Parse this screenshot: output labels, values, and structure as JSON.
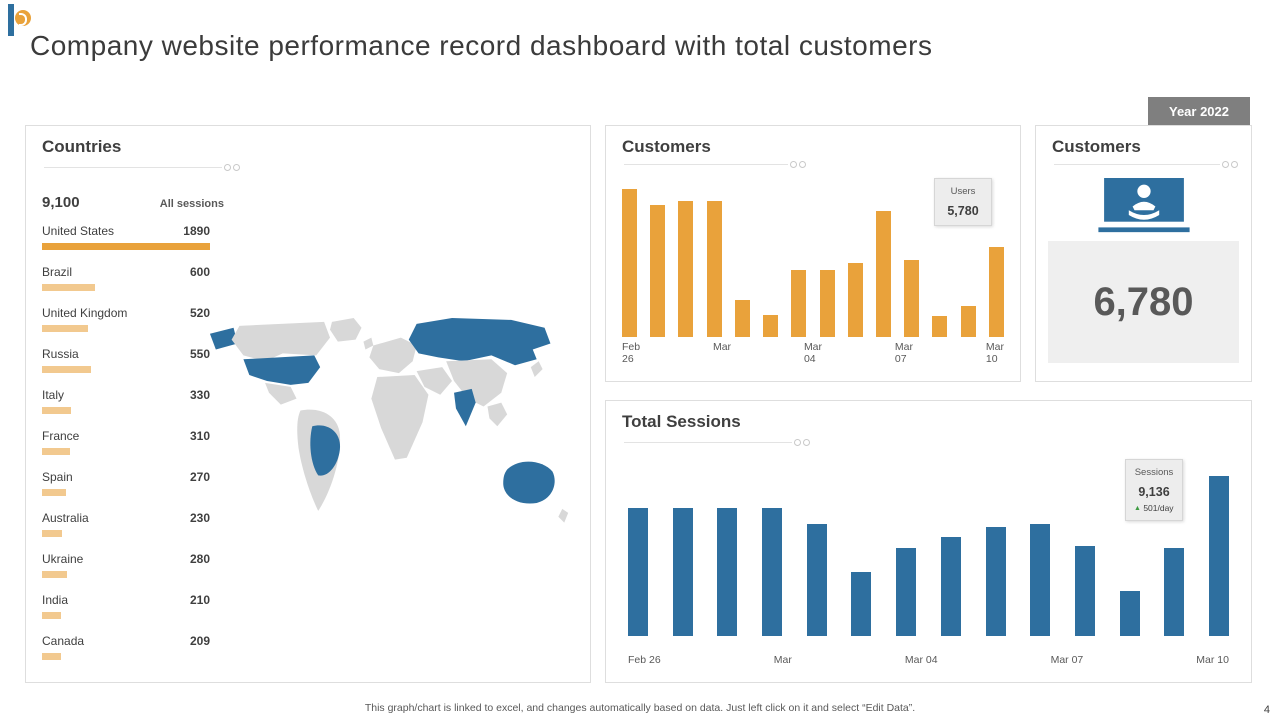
{
  "page": {
    "title": "Company website performance record dashboard with total customers",
    "year_badge": "Year 2022",
    "footer_note": "This graph/chart is linked to excel, and changes automatically based on data. Just left click on it and select “Edit Data”.",
    "page_number": "4"
  },
  "colors": {
    "accent_blue": "#2E6F9F",
    "accent_orange": "#E9A23B",
    "accent_orange_light": "#F2C98F",
    "badge_gray": "#7F7F7F",
    "map_gray": "#D8D8D8",
    "delta_green": "#3E9B42"
  },
  "customers_kpi": {
    "title": "Customers",
    "value": "6,780"
  },
  "chart_data": [
    {
      "id": "countries-all-sessions",
      "type": "bar",
      "orientation": "horizontal",
      "title": "Countries",
      "subtitle_value": "9,100",
      "subtitle_label": "All sessions",
      "categories": [
        "United States",
        "Brazil",
        "United Kingdom",
        "Russia",
        "Italy",
        "France",
        "Spain",
        "Australia",
        "Ukraine",
        "India",
        "Canada"
      ],
      "values": [
        1890,
        600,
        520,
        550,
        330,
        310,
        270,
        230,
        280,
        210,
        209
      ],
      "value_labels": [
        "1890",
        "600",
        "520",
        "550",
        "330",
        "310",
        "270",
        "230",
        "280",
        "210",
        "209"
      ],
      "max": 1890,
      "highlight_index": 0,
      "map_highlighted_countries": [
        "United States",
        "Brazil",
        "Russia",
        "India",
        "Australia"
      ]
    },
    {
      "id": "customers-by-day",
      "type": "bar",
      "title": "Customers",
      "ticks": [
        "Feb\n26",
        "Mar",
        "Mar\n04",
        "Mar\n07",
        "Mar\n10"
      ],
      "values": [
        100,
        89,
        92,
        92,
        25,
        15,
        45,
        45,
        50,
        85,
        52,
        14,
        21,
        61
      ],
      "y_unit": "relative height, % of max (no value axis shown)",
      "legend_position": "none",
      "tooltip": {
        "label": "Users",
        "value": "5,780"
      }
    },
    {
      "id": "total-sessions-by-day",
      "type": "bar",
      "title": "Total Sessions",
      "ticks": [
        "Feb 26",
        "Mar",
        "Mar 04",
        "Mar 07",
        "Mar 10"
      ],
      "values": [
        80,
        80,
        80,
        80,
        70,
        40,
        55,
        62,
        68,
        70,
        56,
        28,
        55,
        100
      ],
      "y_unit": "relative height, % of max (no value axis shown)",
      "legend_position": "none",
      "tooltip": {
        "label": "Sessions",
        "value": "9,136",
        "delta": "501/day"
      }
    }
  ]
}
